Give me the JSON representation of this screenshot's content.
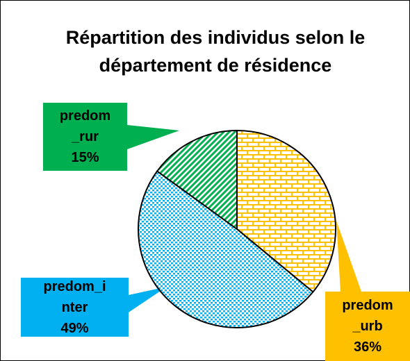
{
  "chart_data": {
    "type": "pie",
    "title": "Répartition des individus selon le département de résidence",
    "categories": [
      "predom_urb",
      "predom_inter",
      "predom_rur"
    ],
    "values": [
      36,
      49,
      15
    ],
    "value_labels": [
      "36%",
      "49%",
      "15%"
    ],
    "colors": [
      "#ffc000",
      "#00b0f0",
      "#00b050"
    ]
  }
}
